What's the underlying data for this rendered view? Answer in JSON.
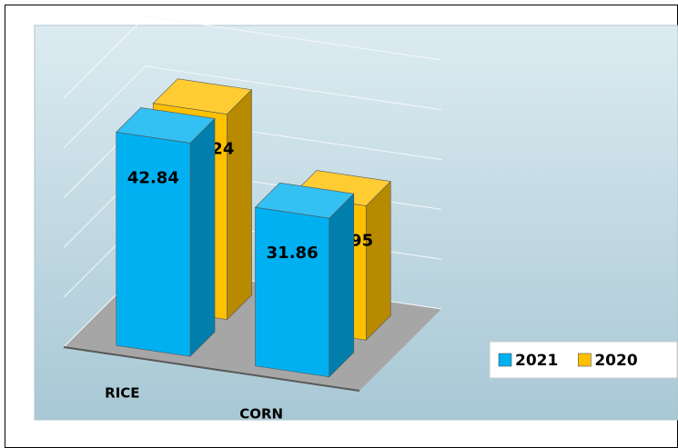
{
  "chart_data": {
    "type": "bar3d",
    "categories": [
      "RICE",
      "CORN"
    ],
    "series": [
      {
        "name": "2021",
        "color": "#00b0f0",
        "values": [
          42.84,
          31.86
        ]
      },
      {
        "name": "2020",
        "color": "#ffc000",
        "values": [
          41.24,
          26.95
        ]
      }
    ],
    "ylim": [
      0,
      50
    ],
    "yticks": [
      0,
      10,
      20,
      30,
      40,
      50
    ],
    "grid": true,
    "legend": "right"
  }
}
